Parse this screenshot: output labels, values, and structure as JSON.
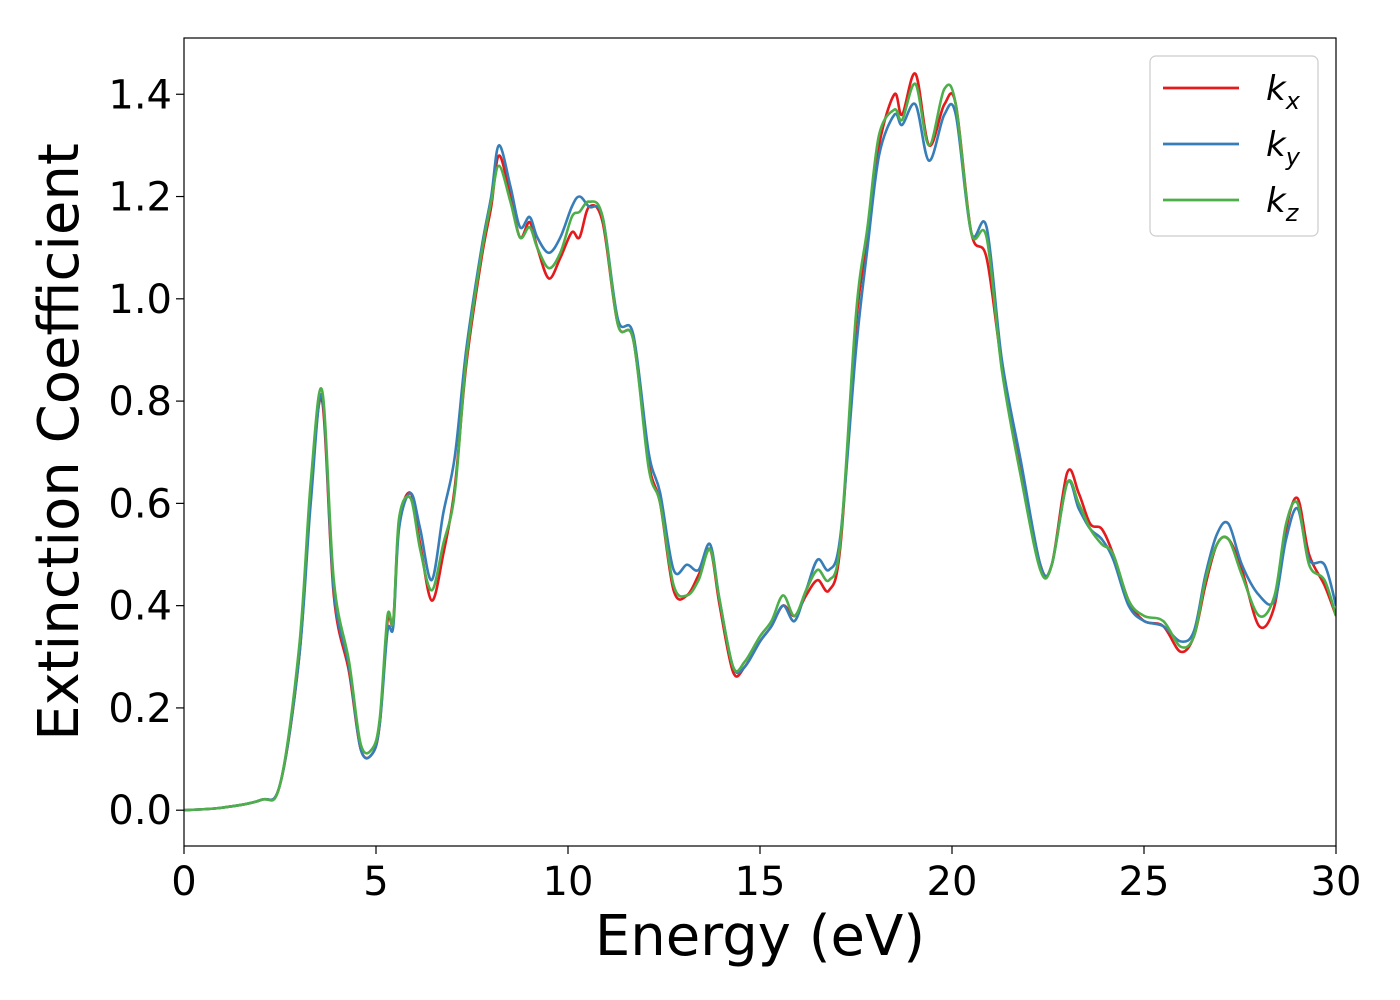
{
  "chart_data": {
    "type": "line",
    "title": "",
    "xlabel": "Energy (eV)",
    "ylabel": "Extinction Coefficient",
    "xlim": [
      0,
      30
    ],
    "ylim": [
      -0.07,
      1.51
    ],
    "x_ticks": [
      0,
      5,
      10,
      15,
      20,
      25,
      30
    ],
    "y_ticks": [
      0.0,
      0.2,
      0.4,
      0.6,
      0.8,
      1.0,
      1.2,
      1.4
    ],
    "y_tick_labels": [
      "0.0",
      "0.2",
      "0.4",
      "0.6",
      "0.8",
      "1.0",
      "1.2",
      "1.4"
    ],
    "grid": false,
    "legend_position": "top-right",
    "series": [
      {
        "name": "k_x",
        "legend_main": "k",
        "legend_sub": "x",
        "color": "#e41a1c",
        "points": [
          [
            0,
            0.0
          ],
          [
            1,
            0.005
          ],
          [
            2,
            0.02
          ],
          [
            2.5,
            0.05
          ],
          [
            3.0,
            0.3
          ],
          [
            3.3,
            0.62
          ],
          [
            3.6,
            0.8
          ],
          [
            3.9,
            0.42
          ],
          [
            4.3,
            0.27
          ],
          [
            4.6,
            0.12
          ],
          [
            4.9,
            0.11
          ],
          [
            5.1,
            0.17
          ],
          [
            5.3,
            0.37
          ],
          [
            5.45,
            0.37
          ],
          [
            5.6,
            0.56
          ],
          [
            5.9,
            0.62
          ],
          [
            6.15,
            0.52
          ],
          [
            6.45,
            0.41
          ],
          [
            6.75,
            0.5
          ],
          [
            7.05,
            0.63
          ],
          [
            7.35,
            0.87
          ],
          [
            7.75,
            1.08
          ],
          [
            8.0,
            1.18
          ],
          [
            8.2,
            1.28
          ],
          [
            8.5,
            1.2
          ],
          [
            8.75,
            1.12
          ],
          [
            9.0,
            1.15
          ],
          [
            9.2,
            1.1
          ],
          [
            9.5,
            1.04
          ],
          [
            9.8,
            1.08
          ],
          [
            10.1,
            1.13
          ],
          [
            10.3,
            1.12
          ],
          [
            10.55,
            1.18
          ],
          [
            10.9,
            1.15
          ],
          [
            11.3,
            0.95
          ],
          [
            11.7,
            0.92
          ],
          [
            12.1,
            0.68
          ],
          [
            12.4,
            0.6
          ],
          [
            12.75,
            0.43
          ],
          [
            13.1,
            0.42
          ],
          [
            13.4,
            0.46
          ],
          [
            13.7,
            0.51
          ],
          [
            13.95,
            0.4
          ],
          [
            14.3,
            0.27
          ],
          [
            14.6,
            0.28
          ],
          [
            15.0,
            0.33
          ],
          [
            15.3,
            0.36
          ],
          [
            15.6,
            0.4
          ],
          [
            15.9,
            0.38
          ],
          [
            16.2,
            0.42
          ],
          [
            16.5,
            0.45
          ],
          [
            16.8,
            0.43
          ],
          [
            17.1,
            0.52
          ],
          [
            17.5,
            0.95
          ],
          [
            17.8,
            1.12
          ],
          [
            18.1,
            1.3
          ],
          [
            18.5,
            1.4
          ],
          [
            18.7,
            1.36
          ],
          [
            19.05,
            1.44
          ],
          [
            19.4,
            1.3
          ],
          [
            19.8,
            1.38
          ],
          [
            20.1,
            1.38
          ],
          [
            20.5,
            1.13
          ],
          [
            20.9,
            1.08
          ],
          [
            21.3,
            0.87
          ],
          [
            21.8,
            0.67
          ],
          [
            22.3,
            0.48
          ],
          [
            22.6,
            0.48
          ],
          [
            23.0,
            0.66
          ],
          [
            23.3,
            0.62
          ],
          [
            23.6,
            0.56
          ],
          [
            23.9,
            0.55
          ],
          [
            24.2,
            0.5
          ],
          [
            24.6,
            0.41
          ],
          [
            25.0,
            0.37
          ],
          [
            25.5,
            0.36
          ],
          [
            25.95,
            0.31
          ],
          [
            26.3,
            0.34
          ],
          [
            26.6,
            0.44
          ],
          [
            26.9,
            0.52
          ],
          [
            27.2,
            0.53
          ],
          [
            27.55,
            0.47
          ],
          [
            28.0,
            0.36
          ],
          [
            28.4,
            0.4
          ],
          [
            28.7,
            0.55
          ],
          [
            29.0,
            0.61
          ],
          [
            29.3,
            0.5
          ],
          [
            29.7,
            0.44
          ],
          [
            30.0,
            0.38
          ]
        ]
      },
      {
        "name": "k_y",
        "legend_main": "k",
        "legend_sub": "y",
        "color": "#377eb8",
        "points": [
          [
            0,
            0.0
          ],
          [
            1,
            0.005
          ],
          [
            2,
            0.02
          ],
          [
            2.5,
            0.05
          ],
          [
            3.0,
            0.3
          ],
          [
            3.3,
            0.6
          ],
          [
            3.6,
            0.81
          ],
          [
            3.9,
            0.43
          ],
          [
            4.3,
            0.28
          ],
          [
            4.6,
            0.12
          ],
          [
            4.9,
            0.11
          ],
          [
            5.1,
            0.17
          ],
          [
            5.3,
            0.35
          ],
          [
            5.45,
            0.36
          ],
          [
            5.6,
            0.55
          ],
          [
            5.9,
            0.62
          ],
          [
            6.15,
            0.55
          ],
          [
            6.45,
            0.45
          ],
          [
            6.75,
            0.58
          ],
          [
            7.05,
            0.69
          ],
          [
            7.35,
            0.9
          ],
          [
            7.75,
            1.1
          ],
          [
            8.0,
            1.2
          ],
          [
            8.2,
            1.3
          ],
          [
            8.5,
            1.22
          ],
          [
            8.75,
            1.14
          ],
          [
            9.0,
            1.16
          ],
          [
            9.2,
            1.12
          ],
          [
            9.5,
            1.09
          ],
          [
            9.8,
            1.12
          ],
          [
            10.1,
            1.18
          ],
          [
            10.3,
            1.2
          ],
          [
            10.55,
            1.18
          ],
          [
            10.9,
            1.16
          ],
          [
            11.3,
            0.96
          ],
          [
            11.7,
            0.93
          ],
          [
            12.1,
            0.7
          ],
          [
            12.4,
            0.62
          ],
          [
            12.75,
            0.47
          ],
          [
            13.1,
            0.48
          ],
          [
            13.4,
            0.47
          ],
          [
            13.7,
            0.52
          ],
          [
            13.95,
            0.41
          ],
          [
            14.3,
            0.28
          ],
          [
            14.6,
            0.28
          ],
          [
            15.0,
            0.33
          ],
          [
            15.3,
            0.36
          ],
          [
            15.6,
            0.4
          ],
          [
            15.9,
            0.37
          ],
          [
            16.2,
            0.43
          ],
          [
            16.5,
            0.49
          ],
          [
            16.8,
            0.47
          ],
          [
            17.1,
            0.54
          ],
          [
            17.5,
            0.9
          ],
          [
            17.8,
            1.1
          ],
          [
            18.1,
            1.28
          ],
          [
            18.5,
            1.36
          ],
          [
            18.7,
            1.34
          ],
          [
            19.05,
            1.38
          ],
          [
            19.4,
            1.27
          ],
          [
            19.8,
            1.36
          ],
          [
            20.1,
            1.36
          ],
          [
            20.5,
            1.13
          ],
          [
            20.9,
            1.14
          ],
          [
            21.3,
            0.88
          ],
          [
            21.8,
            0.68
          ],
          [
            22.3,
            0.48
          ],
          [
            22.6,
            0.48
          ],
          [
            23.0,
            0.64
          ],
          [
            23.3,
            0.59
          ],
          [
            23.6,
            0.55
          ],
          [
            23.9,
            0.53
          ],
          [
            24.2,
            0.49
          ],
          [
            24.6,
            0.4
          ],
          [
            25.0,
            0.37
          ],
          [
            25.5,
            0.36
          ],
          [
            25.95,
            0.33
          ],
          [
            26.3,
            0.35
          ],
          [
            26.6,
            0.46
          ],
          [
            26.9,
            0.54
          ],
          [
            27.2,
            0.56
          ],
          [
            27.55,
            0.48
          ],
          [
            28.0,
            0.42
          ],
          [
            28.4,
            0.41
          ],
          [
            28.7,
            0.53
          ],
          [
            29.0,
            0.59
          ],
          [
            29.3,
            0.49
          ],
          [
            29.7,
            0.48
          ],
          [
            30.0,
            0.4
          ]
        ]
      },
      {
        "name": "k_z",
        "legend_main": "k",
        "legend_sub": "z",
        "color": "#4daf4a",
        "points": [
          [
            0,
            0.0
          ],
          [
            1,
            0.005
          ],
          [
            2,
            0.02
          ],
          [
            2.5,
            0.05
          ],
          [
            3.0,
            0.32
          ],
          [
            3.3,
            0.64
          ],
          [
            3.6,
            0.82
          ],
          [
            3.9,
            0.45
          ],
          [
            4.3,
            0.29
          ],
          [
            4.6,
            0.13
          ],
          [
            4.9,
            0.12
          ],
          [
            5.1,
            0.18
          ],
          [
            5.3,
            0.38
          ],
          [
            5.45,
            0.37
          ],
          [
            5.6,
            0.57
          ],
          [
            5.9,
            0.61
          ],
          [
            6.15,
            0.51
          ],
          [
            6.45,
            0.43
          ],
          [
            6.75,
            0.52
          ],
          [
            7.05,
            0.62
          ],
          [
            7.35,
            0.88
          ],
          [
            7.75,
            1.09
          ],
          [
            8.0,
            1.19
          ],
          [
            8.2,
            1.26
          ],
          [
            8.5,
            1.19
          ],
          [
            8.75,
            1.12
          ],
          [
            9.0,
            1.14
          ],
          [
            9.2,
            1.1
          ],
          [
            9.5,
            1.06
          ],
          [
            9.8,
            1.09
          ],
          [
            10.1,
            1.16
          ],
          [
            10.3,
            1.17
          ],
          [
            10.55,
            1.19
          ],
          [
            10.9,
            1.16
          ],
          [
            11.3,
            0.95
          ],
          [
            11.7,
            0.92
          ],
          [
            12.1,
            0.67
          ],
          [
            12.4,
            0.6
          ],
          [
            12.75,
            0.44
          ],
          [
            13.1,
            0.42
          ],
          [
            13.4,
            0.45
          ],
          [
            13.7,
            0.51
          ],
          [
            13.95,
            0.41
          ],
          [
            14.3,
            0.28
          ],
          [
            14.6,
            0.29
          ],
          [
            15.0,
            0.34
          ],
          [
            15.3,
            0.37
          ],
          [
            15.6,
            0.42
          ],
          [
            15.9,
            0.38
          ],
          [
            16.2,
            0.43
          ],
          [
            16.5,
            0.47
          ],
          [
            16.8,
            0.45
          ],
          [
            17.1,
            0.53
          ],
          [
            17.5,
            0.97
          ],
          [
            17.8,
            1.14
          ],
          [
            18.1,
            1.32
          ],
          [
            18.5,
            1.37
          ],
          [
            18.7,
            1.35
          ],
          [
            19.05,
            1.42
          ],
          [
            19.4,
            1.3
          ],
          [
            19.8,
            1.41
          ],
          [
            20.1,
            1.38
          ],
          [
            20.5,
            1.13
          ],
          [
            20.9,
            1.12
          ],
          [
            21.3,
            0.86
          ],
          [
            21.8,
            0.65
          ],
          [
            22.3,
            0.47
          ],
          [
            22.6,
            0.48
          ],
          [
            23.0,
            0.64
          ],
          [
            23.3,
            0.6
          ],
          [
            23.6,
            0.55
          ],
          [
            23.9,
            0.52
          ],
          [
            24.2,
            0.5
          ],
          [
            24.6,
            0.41
          ],
          [
            25.0,
            0.38
          ],
          [
            25.5,
            0.37
          ],
          [
            25.95,
            0.32
          ],
          [
            26.3,
            0.34
          ],
          [
            26.6,
            0.45
          ],
          [
            26.9,
            0.52
          ],
          [
            27.2,
            0.53
          ],
          [
            27.55,
            0.46
          ],
          [
            28.0,
            0.38
          ],
          [
            28.4,
            0.42
          ],
          [
            28.7,
            0.56
          ],
          [
            29.0,
            0.6
          ],
          [
            29.3,
            0.48
          ],
          [
            29.7,
            0.45
          ],
          [
            30.0,
            0.38
          ]
        ]
      }
    ]
  }
}
